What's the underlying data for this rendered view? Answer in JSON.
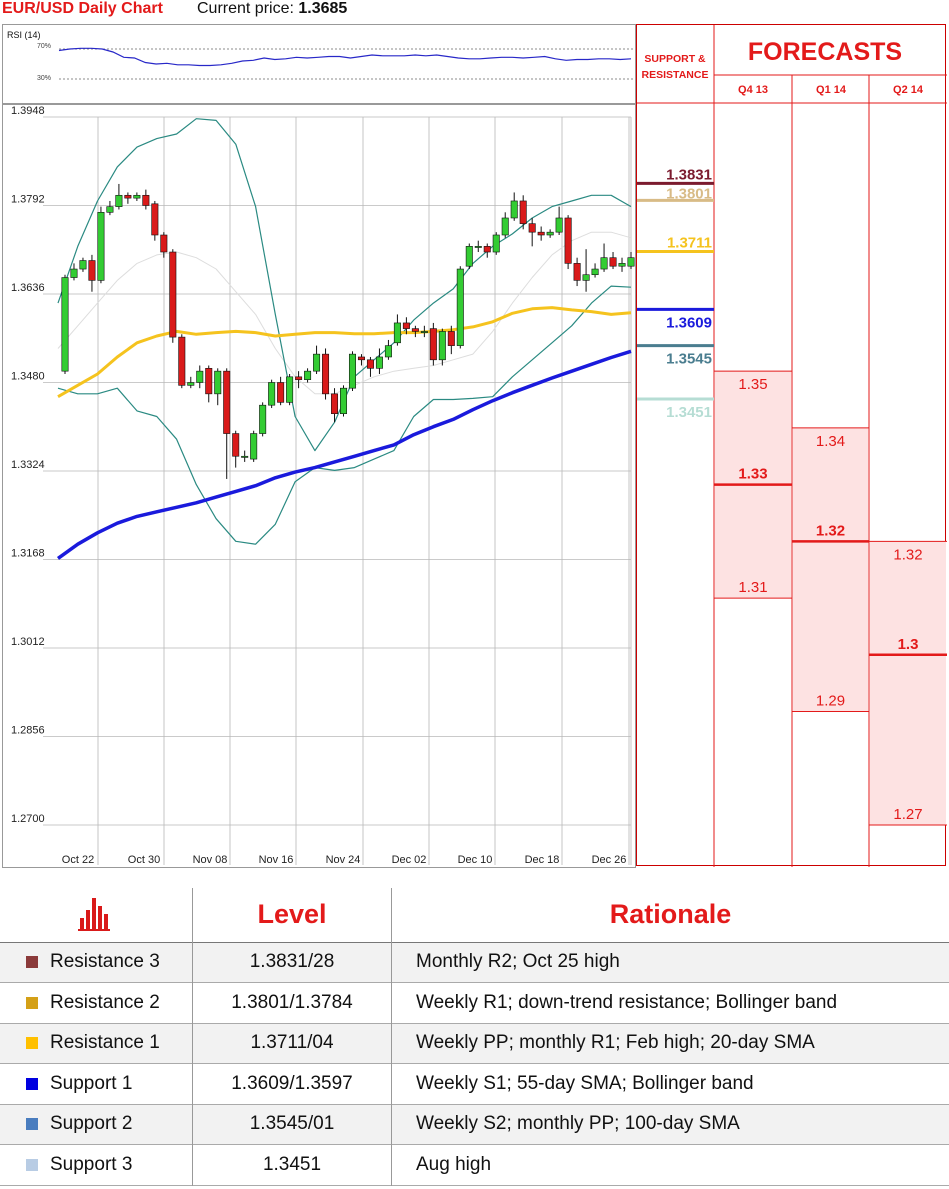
{
  "header": {
    "title": "EUR/USD Daily Chart",
    "price_label": "Current price:",
    "price_value": "1.3685"
  },
  "rsi": {
    "label": "RSI (14)",
    "tick_70": "70%",
    "tick_30": "30%",
    "values": [
      68,
      70,
      71,
      71,
      70,
      66,
      59,
      58,
      52,
      50,
      51,
      49,
      49,
      48,
      48,
      49,
      51,
      54,
      55,
      58,
      56,
      57,
      59,
      58,
      59,
      60,
      60,
      58,
      60,
      62,
      61,
      61,
      61,
      62,
      61,
      62,
      60,
      58,
      57,
      57,
      58,
      59,
      59,
      58,
      59,
      60,
      57,
      55,
      56,
      56,
      57,
      57,
      56,
      57
    ]
  },
  "chart_data": {
    "type": "candlestick",
    "title": "EUR/USD Daily Chart",
    "ylim": [
      1.27,
      1.3948
    ],
    "y_ticks": [
      "1.3948",
      "1.3792",
      "1.3636",
      "1.3480",
      "1.3324",
      "1.3168",
      "1.3012",
      "1.2856",
      "1.2700"
    ],
    "x_ticks": [
      "Oct 22",
      "Oct 30",
      "Nov 08",
      "Nov 16",
      "Nov 24",
      "Dec 02",
      "Dec 10",
      "Dec 18",
      "Dec 26"
    ],
    "candles": [
      [
        1.35,
        1.3665,
        1.3495,
        1.367
      ],
      [
        1.3665,
        1.368,
        1.366,
        1.369
      ],
      [
        1.368,
        1.3695,
        1.3675,
        1.37
      ],
      [
        1.3695,
        1.366,
        1.364,
        1.3705
      ],
      [
        1.366,
        1.378,
        1.3655,
        1.379
      ],
      [
        1.378,
        1.379,
        1.3775,
        1.38
      ],
      [
        1.379,
        1.381,
        1.3785,
        1.383
      ],
      [
        1.381,
        1.3805,
        1.3795,
        1.3815
      ],
      [
        1.3805,
        1.381,
        1.38,
        1.3815
      ],
      [
        1.381,
        1.3792,
        1.3785,
        1.382
      ],
      [
        1.3795,
        1.374,
        1.373,
        1.38
      ],
      [
        1.374,
        1.371,
        1.37,
        1.3745
      ],
      [
        1.371,
        1.356,
        1.355,
        1.3715
      ],
      [
        1.356,
        1.3475,
        1.347,
        1.3565
      ],
      [
        1.3475,
        1.348,
        1.347,
        1.349
      ],
      [
        1.348,
        1.35,
        1.347,
        1.351
      ],
      [
        1.3505,
        1.346,
        1.3445,
        1.351
      ],
      [
        1.346,
        1.35,
        1.344,
        1.3505
      ],
      [
        1.35,
        1.339,
        1.331,
        1.3505
      ],
      [
        1.339,
        1.335,
        1.333,
        1.3395
      ],
      [
        1.335,
        1.335,
        1.334,
        1.336
      ],
      [
        1.3345,
        1.339,
        1.334,
        1.3395
      ],
      [
        1.339,
        1.344,
        1.3385,
        1.3445
      ],
      [
        1.344,
        1.348,
        1.3435,
        1.3485
      ],
      [
        1.348,
        1.3445,
        1.344,
        1.349
      ],
      [
        1.3445,
        1.349,
        1.344,
        1.3495
      ],
      [
        1.349,
        1.3485,
        1.347,
        1.35
      ],
      [
        1.3485,
        1.35,
        1.348,
        1.3505
      ],
      [
        1.35,
        1.353,
        1.3495,
        1.3545
      ],
      [
        1.353,
        1.346,
        1.345,
        1.354
      ],
      [
        1.346,
        1.3425,
        1.341,
        1.347
      ],
      [
        1.3425,
        1.347,
        1.342,
        1.3475
      ],
      [
        1.347,
        1.353,
        1.3465,
        1.3535
      ],
      [
        1.3525,
        1.352,
        1.351,
        1.353
      ],
      [
        1.352,
        1.3505,
        1.349,
        1.3525
      ],
      [
        1.3505,
        1.3525,
        1.3495,
        1.354
      ],
      [
        1.3525,
        1.3545,
        1.352,
        1.3555
      ],
      [
        1.355,
        1.3585,
        1.3545,
        1.36
      ],
      [
        1.3585,
        1.3575,
        1.3565,
        1.3595
      ],
      [
        1.3575,
        1.357,
        1.356,
        1.358
      ],
      [
        1.357,
        1.357,
        1.356,
        1.358
      ],
      [
        1.3575,
        1.352,
        1.351,
        1.3585
      ],
      [
        1.352,
        1.357,
        1.351,
        1.3575
      ],
      [
        1.357,
        1.3545,
        1.353,
        1.358
      ],
      [
        1.3545,
        1.368,
        1.354,
        1.3685
      ],
      [
        1.3685,
        1.372,
        1.368,
        1.3725
      ],
      [
        1.372,
        1.372,
        1.371,
        1.373
      ],
      [
        1.372,
        1.371,
        1.37,
        1.3725
      ],
      [
        1.371,
        1.374,
        1.3705,
        1.3745
      ],
      [
        1.374,
        1.377,
        1.3735,
        1.378
      ],
      [
        1.377,
        1.38,
        1.3765,
        1.3815
      ],
      [
        1.38,
        1.376,
        1.375,
        1.381
      ],
      [
        1.376,
        1.3745,
        1.372,
        1.377
      ],
      [
        1.3745,
        1.374,
        1.373,
        1.3755
      ],
      [
        1.374,
        1.3745,
        1.3735,
        1.375
      ],
      [
        1.3745,
        1.377,
        1.374,
        1.379
      ],
      [
        1.377,
        1.369,
        1.368,
        1.3775
      ],
      [
        1.369,
        1.366,
        1.365,
        1.37
      ],
      [
        1.366,
        1.367,
        1.364,
        1.3715
      ],
      [
        1.367,
        1.368,
        1.3665,
        1.369
      ],
      [
        1.368,
        1.37,
        1.3675,
        1.3725
      ],
      [
        1.37,
        1.3685,
        1.368,
        1.371
      ],
      [
        1.3685,
        1.369,
        1.3675,
        1.37
      ],
      [
        1.3685,
        1.37,
        1.368,
        1.371
      ]
    ],
    "bb_upper": [
      1.362,
      1.372,
      1.38,
      1.386,
      1.3895,
      1.391,
      1.3918,
      1.3945,
      1.3942,
      1.39,
      1.379,
      1.36,
      1.342,
      1.336,
      1.341,
      1.349,
      1.352,
      1.355,
      1.359,
      1.362,
      1.3645,
      1.369,
      1.372,
      1.3742,
      1.377,
      1.379,
      1.38,
      1.381,
      1.381,
      1.379
    ],
    "bb_mid": [
      1.354,
      1.358,
      1.362,
      1.366,
      1.369,
      1.3705,
      1.371,
      1.37,
      1.368,
      1.364,
      1.36,
      1.354,
      1.349,
      1.346,
      1.346,
      1.3475,
      1.349,
      1.35,
      1.3505,
      1.351,
      1.352,
      1.353,
      1.357,
      1.362,
      1.3665,
      1.3705,
      1.373,
      1.3745,
      1.3745,
      1.3735
    ],
    "bb_lower": [
      1.347,
      1.346,
      1.346,
      1.347,
      1.343,
      1.342,
      1.338,
      1.33,
      1.324,
      1.32,
      1.3195,
      1.323,
      1.3305,
      1.333,
      1.3325,
      1.333,
      1.3345,
      1.336,
      1.342,
      1.345,
      1.345,
      1.3452,
      1.3455,
      1.349,
      1.352,
      1.355,
      1.358,
      1.362,
      1.365,
      1.3648
    ],
    "sma_55": [
      1.3455,
      1.3475,
      1.3495,
      1.3525,
      1.355,
      1.3562,
      1.357,
      1.3565,
      1.3568,
      1.357,
      1.3568,
      1.3562,
      1.3565,
      1.3568,
      1.3568,
      1.3566,
      1.3566,
      1.3568,
      1.3568,
      1.357,
      1.3573,
      1.3578,
      1.3587,
      1.3602,
      1.361,
      1.3612,
      1.3608,
      1.3605,
      1.36,
      1.3603
    ],
    "sma_100": [
      1.317,
      1.3195,
      1.3215,
      1.3232,
      1.3244,
      1.3252,
      1.326,
      1.3268,
      1.3278,
      1.3288,
      1.3298,
      1.3312,
      1.3322,
      1.333,
      1.334,
      1.335,
      1.336,
      1.337,
      1.3388,
      1.3402,
      1.3415,
      1.3432,
      1.3448,
      1.3462,
      1.3475,
      1.3488,
      1.35,
      1.3512,
      1.3524,
      1.3535
    ]
  },
  "support_resistance": {
    "title_line1": "SUPPORT &",
    "title_line2": "RESISTANCE",
    "levels": [
      {
        "label": "1.3831",
        "color": "#7b1b2e"
      },
      {
        "label": "1.3801",
        "color": "#d8bb86"
      },
      {
        "label": "1.3711",
        "color": "#f5c31e"
      },
      {
        "label": "1.3609",
        "color": "#1a1adc"
      },
      {
        "label": "1.3545",
        "color": "#4a7d8f"
      },
      {
        "label": "1.3451",
        "color": "#b6ddd4"
      }
    ]
  },
  "forecasts": {
    "title": "FORECASTS",
    "columns": [
      {
        "label": "Q4 13",
        "high": "1.35",
        "mid": "1.33",
        "low": "1.31"
      },
      {
        "label": "Q1 14",
        "high": "1.34",
        "mid": "1.32",
        "low": "1.29"
      },
      {
        "label": "Q2 14",
        "high": "1.32",
        "mid": "1.3",
        "low": "1.27"
      }
    ]
  },
  "table": {
    "col_level": "Level",
    "col_rationale": "Rationale",
    "rows": [
      {
        "name": "Resistance 3",
        "level": "1.3831/28",
        "rationale": "Monthly R2; Oct 25 high",
        "color": "#8b3a3a"
      },
      {
        "name": "Resistance 2",
        "level": "1.3801/1.3784",
        "rationale": "Weekly R1; down-trend resistance; Bollinger band",
        "color": "#d4a017"
      },
      {
        "name": "Resistance 1",
        "level": "1.3711/04",
        "rationale": "Weekly PP; monthly R1; Feb high; 20-day SMA",
        "color": "#ffc000"
      },
      {
        "name": "Support 1",
        "level": "1.3609/1.3597",
        "rationale": "Weekly S1; 55-day SMA; Bollinger band",
        "color": "#0000e0"
      },
      {
        "name": "Support 2",
        "level": "1.3545/01",
        "rationale": "Weekly S2; monthly PP; 100-day SMA",
        "color": "#4a7dbf"
      },
      {
        "name": "Support 3",
        "level": "1.3451",
        "rationale": "Aug high",
        "color": "#b8cce4"
      }
    ]
  },
  "colors": {
    "up": "#33cc33",
    "down": "#d91a1a",
    "forecast_red": "#e31a1a",
    "sma55": "#f5c31e",
    "sma100": "#1a1adc",
    "bb": "#2a8a82",
    "bbmid": "#dddddd"
  }
}
